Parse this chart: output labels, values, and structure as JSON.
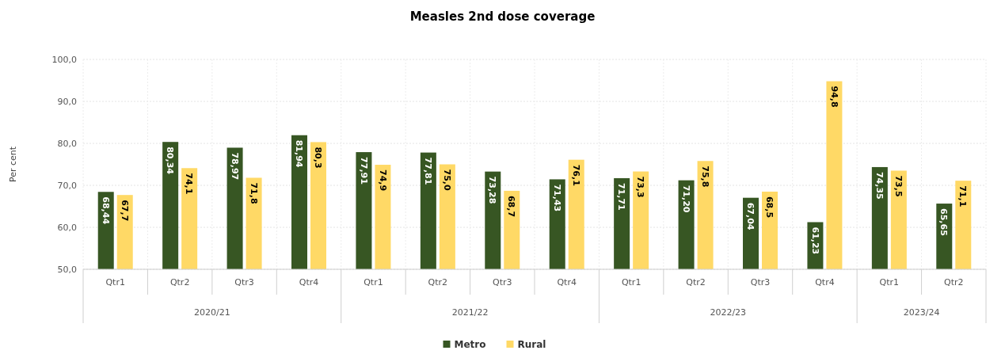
{
  "chart_data": {
    "type": "bar",
    "title": "Measles 2nd dose coverage",
    "ylabel": "Per cent",
    "categories": [
      "Qtr1",
      "Qtr2",
      "Qtr3",
      "Qtr4",
      "Qtr1",
      "Qtr2",
      "Qtr3",
      "Qtr4",
      "Qtr1",
      "Qtr2",
      "Qtr3",
      "Qtr4",
      "Qtr1",
      "Qtr2"
    ],
    "series": [
      {
        "name": "Metro",
        "color": "#375623",
        "values": [
          68.44,
          80.34,
          78.97,
          81.94,
          77.91,
          77.81,
          73.28,
          71.43,
          71.71,
          71.2,
          67.04,
          61.23,
          74.35,
          65.65
        ],
        "value_labels": [
          "68,44",
          "80,34",
          "78,97",
          "81,94",
          "77,91",
          "77,81",
          "73,28",
          "71,43",
          "71,71",
          "71,20",
          "67,04",
          "61,23",
          "74,35",
          "65,65"
        ]
      },
      {
        "name": "Rural",
        "color": "#ffd966",
        "values": [
          67.7,
          74.1,
          71.8,
          80.3,
          74.9,
          75.0,
          68.7,
          76.1,
          73.3,
          75.8,
          68.5,
          94.8,
          73.5,
          71.1
        ],
        "value_labels": [
          "67,7",
          "74,1",
          "71,8",
          "80,3",
          "74,9",
          "75,0",
          "68,7",
          "76,1",
          "73,3",
          "75,8",
          "68,5",
          "94,8",
          "73,5",
          "71,1"
        ]
      }
    ],
    "ylim": [
      50,
      100
    ],
    "yticks": [
      {
        "value": 50,
        "label": "50,0"
      },
      {
        "value": 60,
        "label": "60,0"
      },
      {
        "value": 70,
        "label": "70,0"
      },
      {
        "value": 80,
        "label": "80,0"
      },
      {
        "value": 90,
        "label": "90,0"
      },
      {
        "value": 100,
        "label": "100,0"
      }
    ],
    "grid": true,
    "legend": "bottom",
    "annotations": [
      "2020/21",
      "2021/22",
      "2022/23",
      "2023/24"
    ]
  }
}
